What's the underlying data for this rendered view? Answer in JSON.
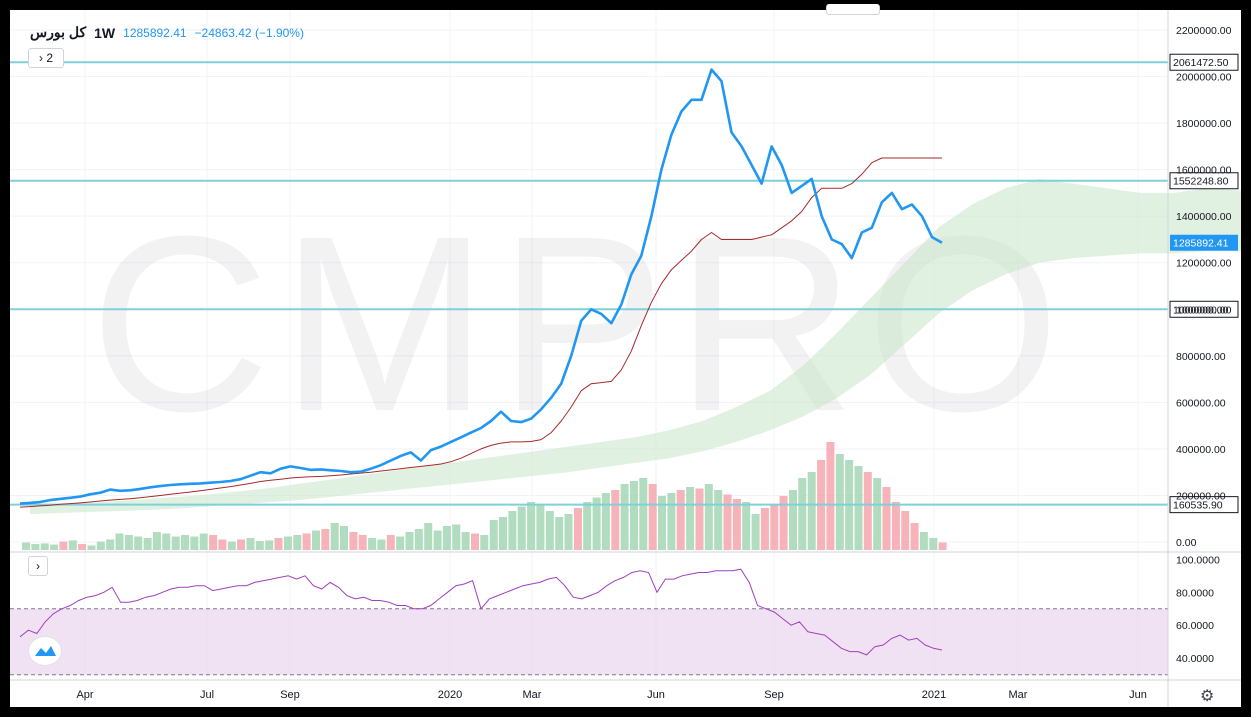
{
  "header": {
    "symbol": "کل بورس",
    "timeframe": "1W",
    "last": "1285892.41",
    "change": "−24863.42 (−1.90%)",
    "study_count": "2"
  },
  "watermark": "CMPRO",
  "colors": {
    "price_line": "#2196f3",
    "ma_line": "#a52a2a",
    "hline": "#7fd0d8",
    "cloud": "#c8e6c9",
    "vol_up": "#a5d6b4",
    "vol_down": "#f4a6ae",
    "rsi_line": "#a040c0",
    "rsi_band": "#e9d5ee"
  },
  "chart_data": [
    {
      "type": "line",
      "title": "",
      "x_ticks": [
        "Apr",
        "Jul",
        "Sep",
        "2020",
        "Mar",
        "Jun",
        "Sep",
        "2021",
        "Mar",
        "Jun"
      ],
      "y_ticks": [
        "2200000.00",
        "2000000.00",
        "1800000.00",
        "1600000.00",
        "1400000.00",
        "1200000.00",
        "1000000.00",
        "800000.00",
        "600000.00",
        "400000.00",
        "200000.00",
        "0.00"
      ],
      "ylim": [
        0,
        2200000
      ],
      "horizontal_levels": [
        {
          "value": 2061472.5,
          "label": "2061472.50"
        },
        {
          "value": 1552248.8,
          "label": "1552248.80"
        },
        {
          "value": 1000000,
          "label": "1000000.00"
        },
        {
          "value": 160535.9,
          "label": "160535.90"
        }
      ],
      "last_price_label": "1285892.41",
      "series": [
        {
          "values": [
            165000,
            168000,
            172000,
            180000,
            185000,
            190000,
            195000,
            205000,
            212000,
            225000,
            220000,
            222000,
            228000,
            235000,
            240000,
            245000,
            248000,
            250000,
            252000,
            255000,
            258000,
            262000,
            270000,
            285000,
            300000,
            295000,
            315000,
            325000,
            318000,
            310000,
            312000,
            308000,
            305000,
            300000,
            302000,
            315000,
            330000,
            350000,
            370000,
            385000,
            350000,
            395000,
            410000,
            430000,
            450000,
            470000,
            490000,
            520000,
            560000,
            520000,
            515000,
            530000,
            570000,
            620000,
            680000,
            800000,
            950000,
            1000000,
            980000,
            940000,
            1020000,
            1150000,
            1230000,
            1400000,
            1600000,
            1750000,
            1850000,
            1900000,
            1900000,
            2030000,
            1980000,
            1760000,
            1700000,
            1620000,
            1540000,
            1700000,
            1620000,
            1500000,
            1530000,
            1560000,
            1400000,
            1300000,
            1280000,
            1220000,
            1330000,
            1350000,
            1460000,
            1500000,
            1430000,
            1450000,
            1400000,
            1310000,
            1285892
          ]
        },
        {
          "values": [
            150000,
            152000,
            155000,
            158000,
            162000,
            165000,
            168000,
            172000,
            176000,
            180000,
            183000,
            186000,
            190000,
            195000,
            200000,
            205000,
            210000,
            215000,
            220000,
            226000,
            232000,
            238000,
            245000,
            252000,
            260000,
            265000,
            270000,
            275000,
            278000,
            280000,
            282000,
            285000,
            288000,
            292000,
            296000,
            300000,
            305000,
            310000,
            315000,
            320000,
            325000,
            330000,
            335000,
            345000,
            360000,
            380000,
            400000,
            415000,
            425000,
            430000,
            430000,
            432000,
            440000,
            470000,
            520000,
            580000,
            650000,
            680000,
            685000,
            690000,
            740000,
            820000,
            930000,
            1030000,
            1110000,
            1170000,
            1210000,
            1250000,
            1300000,
            1330000,
            1300000,
            1300000,
            1300000,
            1300000,
            1310000,
            1320000,
            1350000,
            1380000,
            1420000,
            1480000,
            1520000,
            1520000,
            1520000,
            1540000,
            1580000,
            1630000,
            1650000,
            1650000,
            1650000,
            1650000,
            1650000,
            1650000,
            1650000
          ]
        }
      ],
      "cloud_upper": [
        160000,
        165000,
        170000,
        180000,
        190000,
        200000,
        215000,
        230000,
        250000,
        270000,
        290000,
        310000,
        330000,
        350000,
        370000,
        390000,
        410000,
        430000,
        450000,
        480000,
        520000,
        580000,
        650000,
        760000,
        900000,
        1050000,
        1200000,
        1350000,
        1450000,
        1520000,
        1560000,
        1540000,
        1520000,
        1500000,
        1500000,
        1520000,
        1510000
      ],
      "cloud_lower": [
        120000,
        125000,
        130000,
        135000,
        140000,
        150000,
        160000,
        170000,
        180000,
        195000,
        210000,
        225000,
        240000,
        255000,
        270000,
        285000,
        300000,
        320000,
        340000,
        360000,
        390000,
        430000,
        480000,
        540000,
        620000,
        720000,
        850000,
        980000,
        1080000,
        1150000,
        1200000,
        1220000,
        1230000,
        1240000,
        1240000,
        1250000,
        1250000
      ]
    },
    {
      "type": "bar",
      "title": "",
      "values": [
        25,
        20,
        22,
        18,
        28,
        32,
        20,
        15,
        28,
        35,
        55,
        50,
        45,
        40,
        60,
        55,
        45,
        50,
        45,
        55,
        50,
        35,
        28,
        35,
        40,
        30,
        32,
        40,
        45,
        50,
        55,
        65,
        70,
        90,
        80,
        60,
        50,
        40,
        35,
        50,
        45,
        60,
        70,
        90,
        65,
        80,
        85,
        60,
        55,
        50,
        100,
        110,
        130,
        145,
        160,
        150,
        130,
        110,
        120,
        140,
        160,
        175,
        190,
        200,
        220,
        230,
        240,
        220,
        180,
        190,
        200,
        210,
        205,
        220,
        200,
        185,
        170,
        160,
        120,
        140,
        150,
        180,
        200,
        240,
        260,
        300,
        360,
        320,
        300,
        280,
        260,
        240,
        210,
        160,
        130,
        90,
        60,
        40,
        25
      ],
      "directions": [
        "u",
        "u",
        "u",
        "u",
        "d",
        "u",
        "d",
        "u",
        "u",
        "u",
        "u",
        "u",
        "u",
        "u",
        "u",
        "u",
        "u",
        "u",
        "u",
        "u",
        "d",
        "d",
        "u",
        "d",
        "u",
        "u",
        "u",
        "d",
        "u",
        "u",
        "d",
        "u",
        "d",
        "u",
        "u",
        "d",
        "d",
        "u",
        "u",
        "d",
        "u",
        "u",
        "u",
        "u",
        "u",
        "u",
        "u",
        "u",
        "d",
        "u",
        "u",
        "u",
        "u",
        "u",
        "u",
        "u",
        "u",
        "u",
        "u",
        "d",
        "u",
        "u",
        "u",
        "d",
        "u",
        "u",
        "u",
        "d",
        "u",
        "u",
        "d",
        "u",
        "d",
        "u",
        "u",
        "d",
        "d",
        "u",
        "u",
        "d",
        "d",
        "d",
        "u",
        "u",
        "u",
        "d",
        "d",
        "u",
        "u",
        "u",
        "d",
        "u",
        "d",
        "d",
        "d",
        "d",
        "u",
        "u",
        "d"
      ]
    },
    {
      "type": "line",
      "title": "",
      "y_ticks": [
        "100.0000",
        "80.0000",
        "60.0000",
        "40.0000"
      ],
      "ylim": [
        28,
        102
      ],
      "band": [
        30,
        70
      ],
      "values": [
        53,
        57,
        55,
        62,
        67,
        70,
        72,
        75,
        77,
        78,
        80,
        83,
        74,
        74,
        75,
        77,
        78,
        80,
        82,
        83,
        83,
        84,
        84,
        81,
        82,
        83,
        84,
        84,
        86,
        87,
        88,
        89,
        90,
        88,
        90,
        84,
        82,
        86,
        83,
        78,
        76,
        77,
        75,
        75,
        74,
        72,
        72,
        70,
        70,
        72,
        76,
        80,
        84,
        85,
        87,
        70,
        76,
        78,
        80,
        82,
        84,
        85,
        86,
        88,
        89,
        84,
        77,
        76,
        78,
        80,
        84,
        87,
        89,
        92,
        93,
        92,
        80,
        88,
        88,
        90,
        91,
        92,
        92,
        93,
        93,
        93,
        94,
        86,
        72,
        70,
        68,
        64,
        60,
        62,
        56,
        55,
        54,
        50,
        46,
        44,
        44,
        42,
        47,
        48,
        52,
        54,
        51,
        52,
        48,
        46,
        45
      ]
    }
  ]
}
